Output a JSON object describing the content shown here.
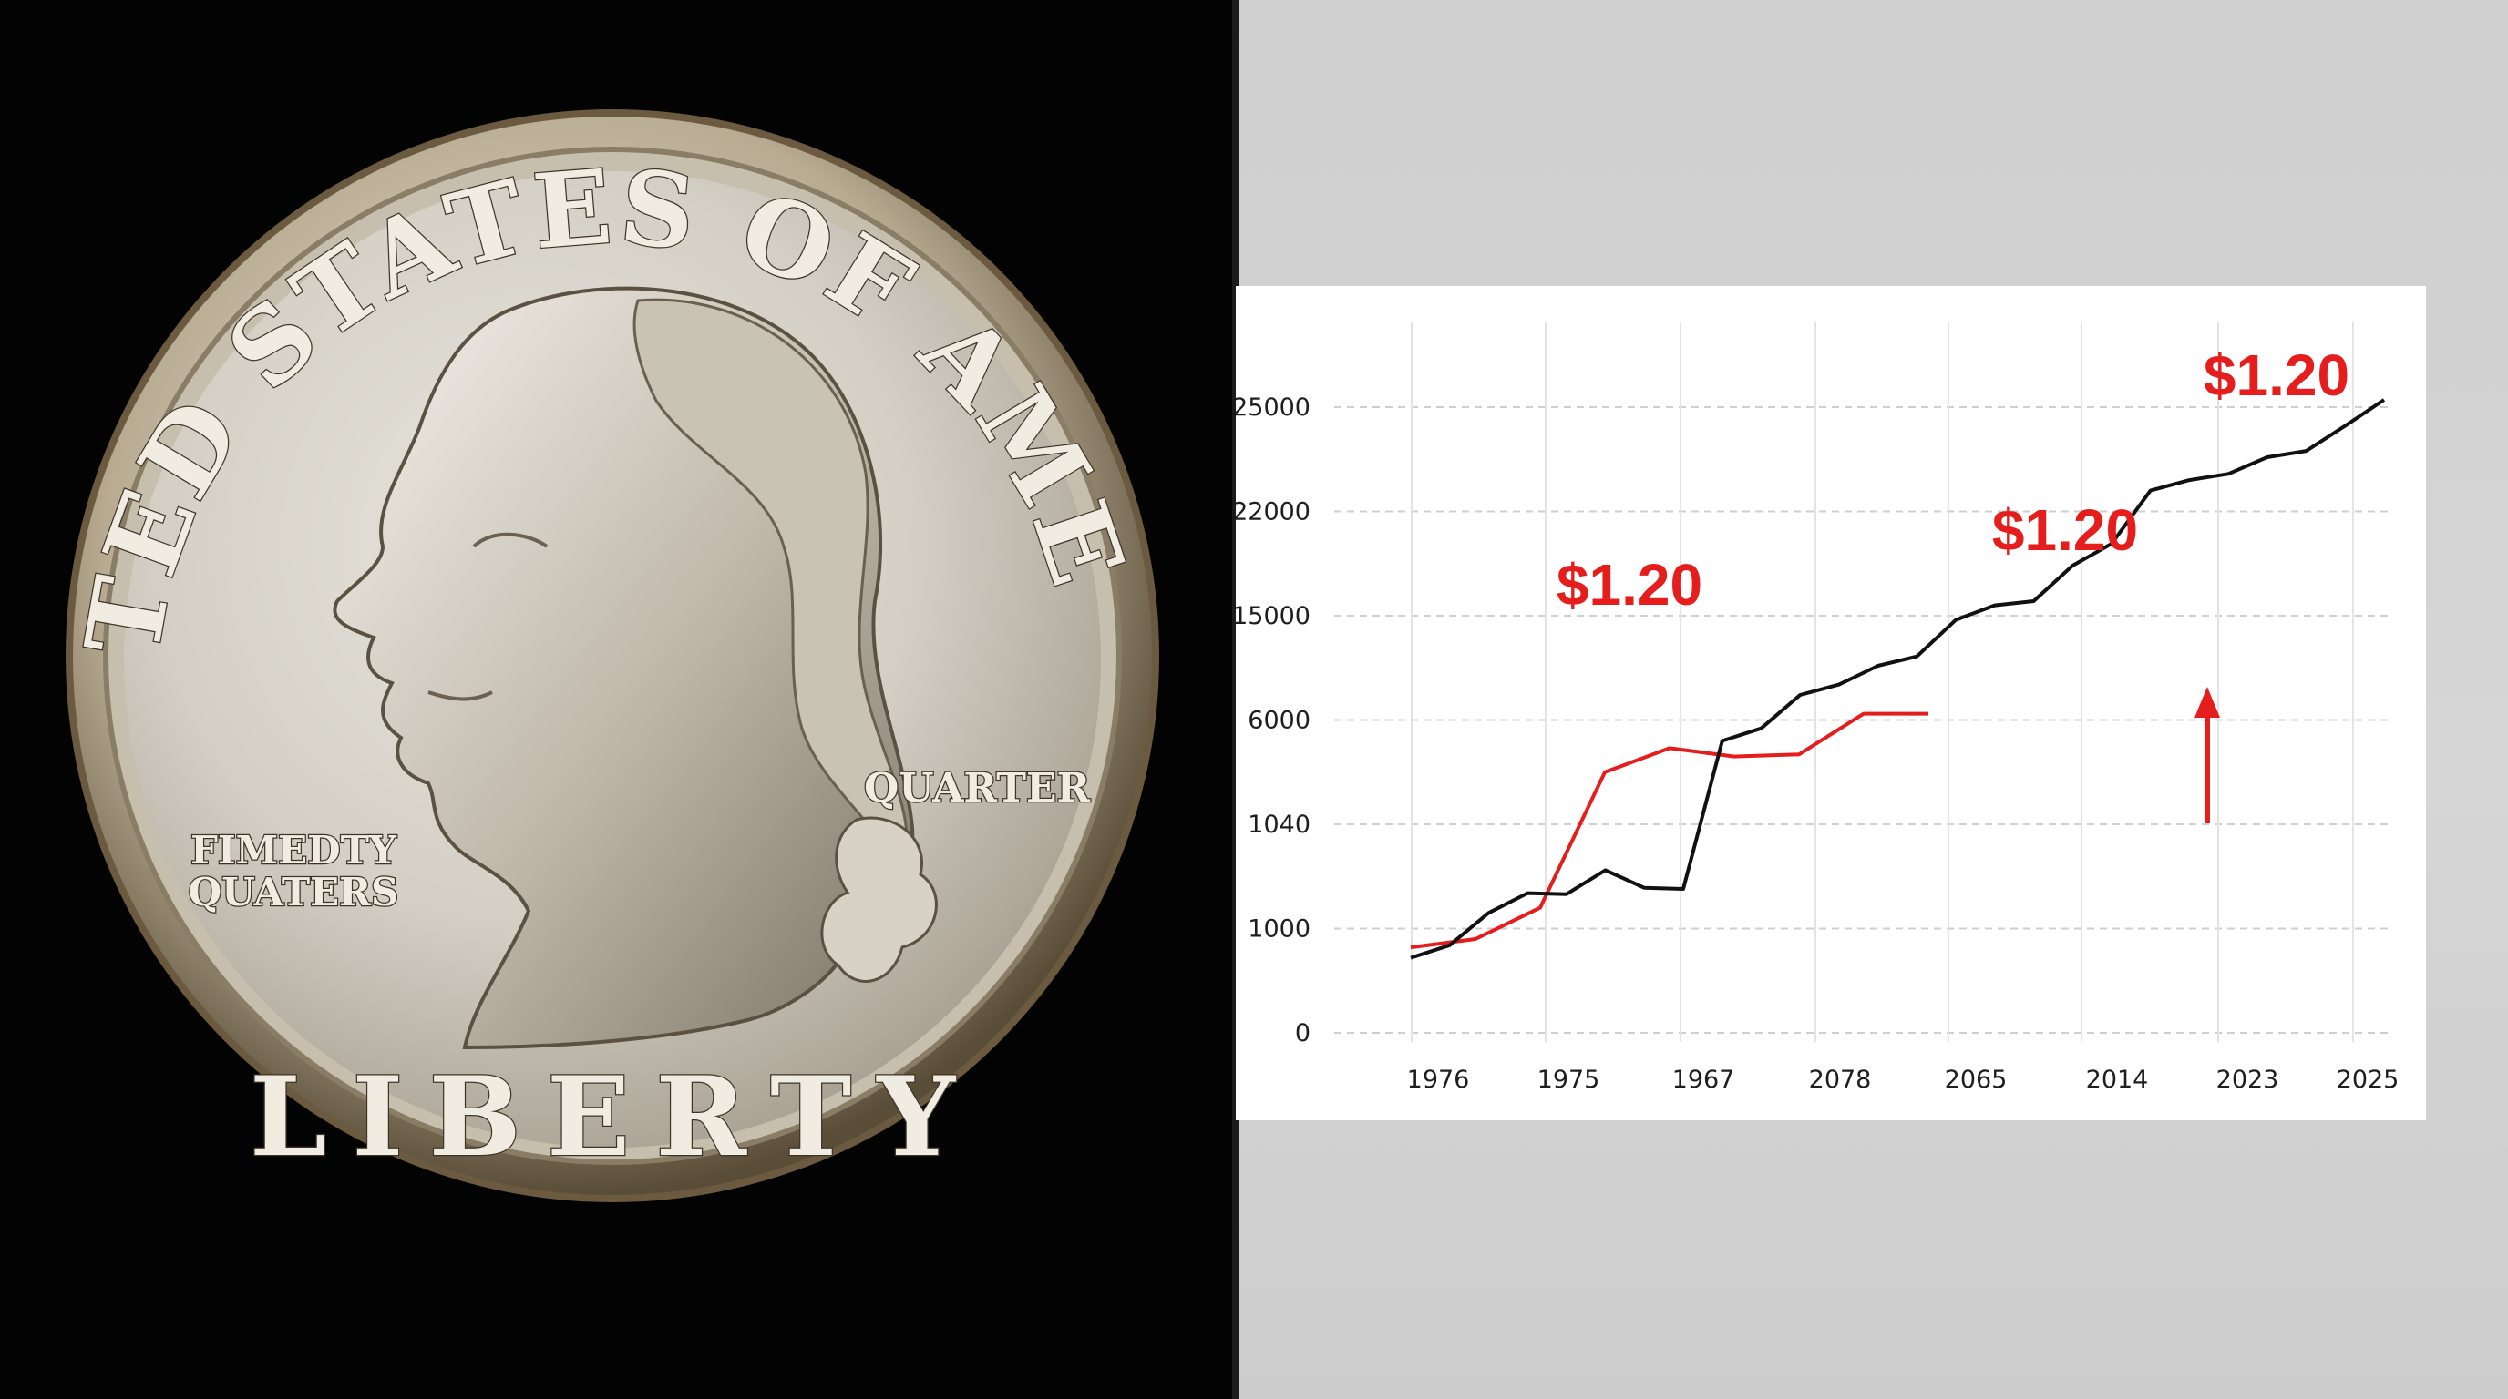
{
  "coin": {
    "top_legend": "UNITED STATES OF AMERICA",
    "bottom_legend": "LIBERTY",
    "right_label": "QUARTER",
    "left_label_line1": "FIMEDTY",
    "left_label_line2": "QUATERS"
  },
  "chart_data": {
    "type": "line",
    "x": [
      "1976",
      "1975",
      "1967",
      "2078",
      "2065",
      "2014",
      "2023",
      "2025"
    ],
    "y_ticks": [
      "0",
      "1000",
      "1040",
      "6000",
      "15000",
      "22000",
      "25000"
    ],
    "series": [
      {
        "color": "#e51d1d",
        "values_tick_index": [
          0.82,
          0.9,
          1.2,
          2.5,
          2.73,
          2.65,
          2.67,
          3.06,
          3.06
        ]
      },
      {
        "color": "#111111",
        "values_tick_index": [
          0.72,
          0.84,
          1.15,
          1.34,
          1.33,
          1.56,
          1.39,
          1.38,
          2.8,
          2.92,
          3.24,
          3.34,
          3.52,
          3.61,
          3.96,
          4.1,
          4.14,
          4.48,
          4.69,
          5.2,
          5.3,
          5.36,
          5.52,
          5.58,
          5.82,
          6.07
        ]
      }
    ],
    "annotations": [
      "$1.20",
      "$1.20",
      "$1.20"
    ],
    "arrow": "up",
    "grid": true
  }
}
